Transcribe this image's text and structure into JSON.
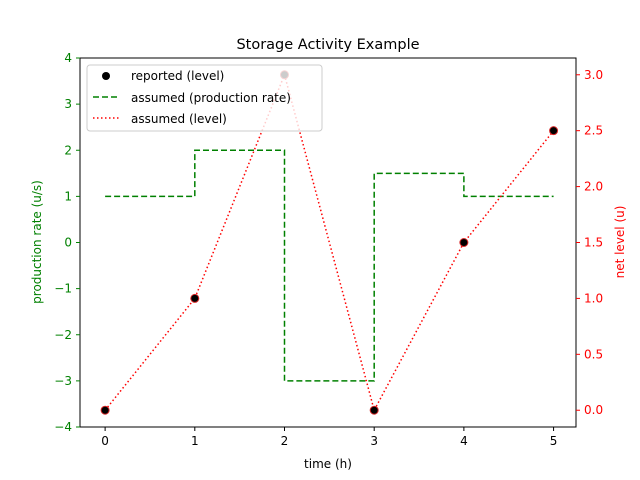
{
  "chart_data": {
    "type": "line",
    "title": "Storage Activity Example",
    "xlabel": "time (h)",
    "ylabel_left": "production rate (u/s)",
    "ylabel_right": "net level (u)",
    "xlim": [
      -0.28,
      5.25
    ],
    "ylim_left": [
      -4,
      4
    ],
    "ylim_right": [
      -0.15,
      3.15
    ],
    "x_ticks": [
      0,
      1,
      2,
      3,
      4,
      5
    ],
    "y_left_ticks": [
      -4,
      -3,
      -2,
      -1,
      0,
      1,
      2,
      3,
      4
    ],
    "y_right_ticks": [
      0.0,
      0.5,
      1.0,
      1.5,
      2.0,
      2.5,
      3.0
    ],
    "grid": false,
    "legend_position": "top-left",
    "series": [
      {
        "name": "reported (level)",
        "axis": "right",
        "style": "markers",
        "color": "#000000",
        "edge_color": "#d62728",
        "x": [
          0,
          1,
          2,
          3,
          4,
          5
        ],
        "y": [
          0.0,
          1.0,
          3.0,
          0.0,
          1.5,
          2.5
        ]
      },
      {
        "name": "assumed (production rate)",
        "axis": "left",
        "style": "dashed-step",
        "color": "#008000",
        "x": [
          0,
          1,
          1,
          2,
          2,
          3,
          3,
          4,
          4,
          5
        ],
        "y": [
          1,
          1,
          2,
          2,
          -3,
          -3,
          1.5,
          1.5,
          1,
          1
        ]
      },
      {
        "name": "assumed (level)",
        "axis": "right",
        "style": "dotted",
        "color": "#ff0000",
        "x": [
          0,
          1,
          2,
          3,
          4,
          5
        ],
        "y": [
          0.0,
          1.0,
          3.0,
          0.0,
          1.5,
          2.5
        ]
      }
    ],
    "colors": {
      "left_axis": "#008000",
      "right_axis": "#ff0000",
      "frame": "#000000"
    }
  }
}
